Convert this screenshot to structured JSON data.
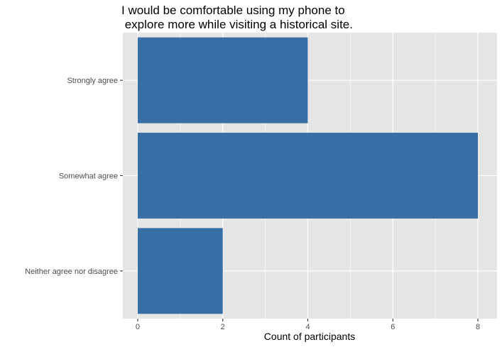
{
  "chart_data": {
    "type": "bar",
    "orientation": "horizontal",
    "title_lines": [
      "I would be comfortable using my phone to",
      " explore more while visiting a historical site."
    ],
    "xlabel": "Count of participants",
    "ylabel": "",
    "categories": [
      "Strongly agree",
      "Somewhat agree",
      "Neither agree nor disagree"
    ],
    "values": [
      4,
      8,
      2
    ],
    "xlim": [
      -0.35,
      8.45
    ],
    "xticks": [
      0,
      2,
      4,
      6,
      8
    ],
    "grid": true,
    "bar_color": "#386ea6",
    "panel_color": "#e5e5e5",
    "grid_color": "#ffffff",
    "legend": "none"
  }
}
